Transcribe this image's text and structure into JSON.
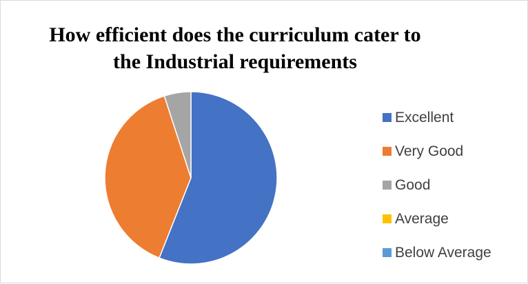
{
  "chart_data": {
    "type": "pie",
    "title_lines": [
      "How efficient does the curriculum cater to",
      "the Industrial requirements"
    ],
    "legend_position": "right",
    "slices": [
      {
        "label": "Excellent",
        "value": 56,
        "color": "#4472C4"
      },
      {
        "label": "Very Good",
        "value": 39,
        "color": "#ED7D31"
      },
      {
        "label": "Good",
        "value": 5,
        "color": "#A5A5A5"
      },
      {
        "label": "Average",
        "value": 0,
        "color": "#FFC000"
      },
      {
        "label": "Below Average",
        "value": 0,
        "color": "#5B9BD5"
      }
    ]
  }
}
